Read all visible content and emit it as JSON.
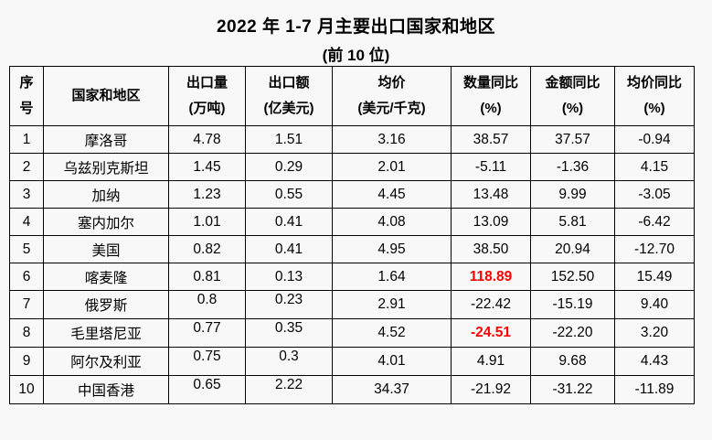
{
  "title": "2022 年 1-7 月主要出口国家和地区",
  "subtitle": "(前 10 位)",
  "colors": {
    "background": "#f8f8f8",
    "text": "#000000",
    "border": "#000000",
    "highlight": "#ff0000"
  },
  "table": {
    "columns": [
      {
        "key": "no",
        "line1": "序号",
        "line2": ""
      },
      {
        "key": "name",
        "line1": "国家和地区",
        "line2": ""
      },
      {
        "key": "volume",
        "line1": "出口量",
        "line2": "(万吨)"
      },
      {
        "key": "value",
        "line1": "出口额",
        "line2": "(亿美元)"
      },
      {
        "key": "avg_price",
        "line1": "均价",
        "line2": "(美元/千克)"
      },
      {
        "key": "qty_yoy",
        "line1": "数量同比",
        "line2": "(%)"
      },
      {
        "key": "value_yoy",
        "line1": "金额同比",
        "line2": "(%)"
      },
      {
        "key": "price_yoy",
        "line1": "均价同比",
        "line2": "(%)"
      }
    ],
    "rows": [
      {
        "no": "1",
        "name": "摩洛哥",
        "volume": "4.78",
        "value": "1.51",
        "avg_price": "3.16",
        "qty_yoy": "38.57",
        "value_yoy": "37.57",
        "price_yoy": "-0.94",
        "red": []
      },
      {
        "no": "2",
        "name": "乌兹别克斯坦",
        "volume": "1.45",
        "value": "0.29",
        "avg_price": "2.01",
        "qty_yoy": "-5.11",
        "value_yoy": "-1.36",
        "price_yoy": "4.15",
        "red": []
      },
      {
        "no": "3",
        "name": "加纳",
        "volume": "1.23",
        "value": "0.55",
        "avg_price": "4.45",
        "qty_yoy": "13.48",
        "value_yoy": "9.99",
        "price_yoy": "-3.05",
        "red": []
      },
      {
        "no": "4",
        "name": "塞内加尔",
        "volume": "1.01",
        "value": "0.41",
        "avg_price": "4.08",
        "qty_yoy": "13.09",
        "value_yoy": "5.81",
        "price_yoy": "-6.42",
        "red": []
      },
      {
        "no": "5",
        "name": "美国",
        "volume": "0.82",
        "value": "0.41",
        "avg_price": "4.95",
        "qty_yoy": "38.50",
        "value_yoy": "20.94",
        "price_yoy": "-12.70",
        "red": []
      },
      {
        "no": "6",
        "name": "喀麦隆",
        "volume": "0.81",
        "value": "0.13",
        "avg_price": "1.64",
        "qty_yoy": "118.89",
        "value_yoy": "152.50",
        "price_yoy": "15.49",
        "red": [
          "qty_yoy"
        ]
      },
      {
        "no": "7",
        "name": "俄罗斯",
        "volume": "0.8",
        "value": "0.23",
        "avg_price": "2.91",
        "qty_yoy": "-22.42",
        "value_yoy": "-15.19",
        "price_yoy": "9.40",
        "red": []
      },
      {
        "no": "8",
        "name": "毛里塔尼亚",
        "volume": "0.77",
        "value": "0.35",
        "avg_price": "4.52",
        "qty_yoy": "-24.51",
        "value_yoy": "-22.20",
        "price_yoy": "3.20",
        "red": [
          "qty_yoy"
        ]
      },
      {
        "no": "9",
        "name": "阿尔及利亚",
        "volume": "0.75",
        "value": "0.3",
        "avg_price": "4.01",
        "qty_yoy": "4.91",
        "value_yoy": "9.68",
        "price_yoy": "4.43",
        "red": []
      },
      {
        "no": "10",
        "name": "中国香港",
        "volume": "0.65",
        "value": "2.22",
        "avg_price": "34.37",
        "qty_yoy": "-21.92",
        "value_yoy": "-31.22",
        "price_yoy": "-11.89",
        "red": []
      }
    ]
  }
}
